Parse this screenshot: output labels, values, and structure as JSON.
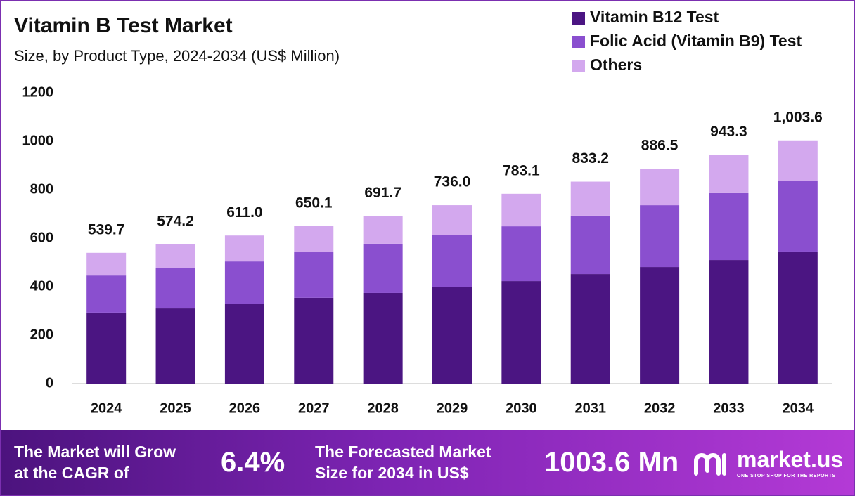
{
  "chart_data": {
    "type": "stacked_bar",
    "title": "Vitamin B Test Market",
    "subtitle": "Size, by Product Type, 2024-2034 (US$ Million)",
    "categories": [
      "2024",
      "2025",
      "2026",
      "2027",
      "2028",
      "2029",
      "2030",
      "2031",
      "2032",
      "2033",
      "2034"
    ],
    "series": [
      {
        "name": "Vitamin B12 Test",
        "color": "#4b1582",
        "values": [
          293,
          310,
          330,
          354,
          374,
          400,
          423,
          452,
          481,
          510,
          545
        ]
      },
      {
        "name": "Folic Acid (Vitamin B9) Test",
        "color": "#8a4fcf",
        "values": [
          153,
          168,
          174,
          188,
          203,
          212,
          226,
          241,
          255,
          276,
          290
        ]
      },
      {
        "name": "Others",
        "color": "#d3a8ee",
        "values": [
          93.7,
          96.2,
          107,
          108.1,
          114.7,
          124,
          134.1,
          140.2,
          150.5,
          157.3,
          168.6
        ]
      }
    ],
    "totals": [
      539.7,
      574.2,
      611.0,
      650.1,
      691.7,
      736.0,
      783.1,
      833.2,
      886.5,
      943.3,
      1003.6
    ],
    "total_labels": [
      "539.7",
      "574.2",
      "611.0",
      "650.1",
      "691.7",
      "736.0",
      "783.1",
      "833.2",
      "886.5",
      "943.3",
      "1,003.6"
    ],
    "ylim": [
      0,
      1200
    ],
    "yticks": [
      0,
      200,
      400,
      600,
      800,
      1000,
      1200
    ],
    "grid": false,
    "legend": "top-right"
  },
  "footer": {
    "cagr_lines": [
      "The Market will Grow",
      "at the CAGR of"
    ],
    "cagr": "6.4%",
    "forecast_lines": [
      "The Forecasted Market",
      "Size for 2034 in US$"
    ],
    "forecast": "1003.6 Mn",
    "brand": "market.us",
    "tagline": "ONE STOP SHOP FOR THE REPORTS"
  }
}
